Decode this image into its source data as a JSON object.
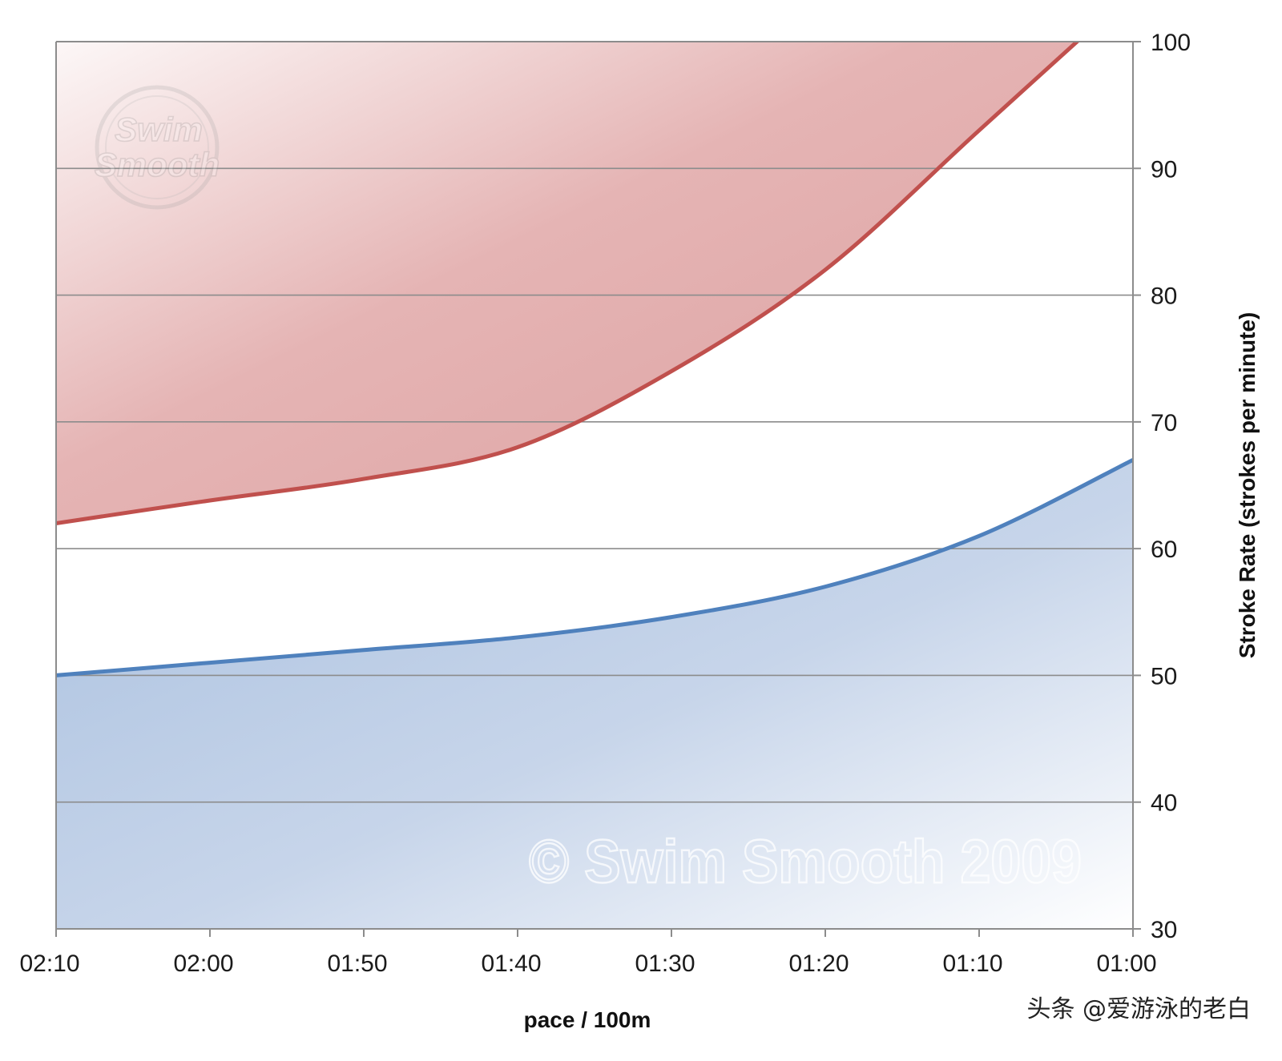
{
  "chart_data": {
    "type": "area",
    "title": "",
    "xlabel": "pace / 100m",
    "ylabel": "Stroke Rate (strokes per minute)",
    "x_tick_labels": [
      "02:10",
      "02:00",
      "01:50",
      "01:40",
      "01:30",
      "01:20",
      "01:10",
      "01:00"
    ],
    "x_seconds": [
      130,
      120,
      110,
      100,
      90,
      80,
      70,
      60
    ],
    "xlim_seconds": [
      130,
      60
    ],
    "y_ticks": [
      30,
      40,
      50,
      60,
      70,
      80,
      90,
      100
    ],
    "ylim": [
      30,
      100
    ],
    "y_axis_side": "right",
    "grid": true,
    "series": [
      {
        "color": "#c0504d",
        "fill": "above",
        "values": [
          62,
          63.8,
          65.5,
          68,
          74,
          82,
          93,
          104
        ]
      },
      {
        "color": "#4f81bd",
        "fill": "below",
        "values": [
          50,
          51,
          52,
          53,
          54.6,
          57,
          61,
          67
        ]
      }
    ],
    "watermarks": {
      "logo_line1": "Swim",
      "logo_line2": "Smooth",
      "copyright": "© Swim Smooth 2009"
    },
    "credit": "头条 @爱游泳的老白"
  }
}
